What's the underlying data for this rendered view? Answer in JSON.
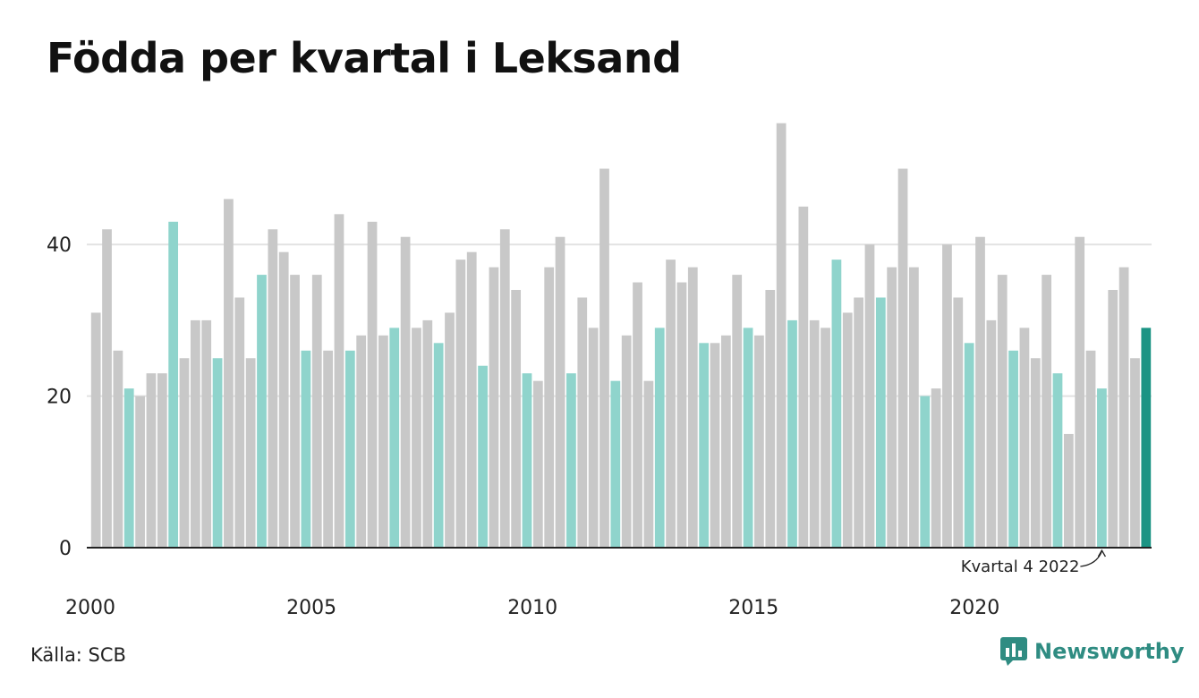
{
  "title": "Födda per kvartal i Leksand",
  "source": "Källa: SCB",
  "brand": {
    "name": "Newsworthy",
    "icon": "newsworthy-logo-icon"
  },
  "colors": {
    "other_quarter": "#c8c8c8",
    "q4_highlight": "#8fd4cc",
    "latest": "#1b9484",
    "gridline": "#e2e2e2",
    "axis": "#222222",
    "brand": "#2f8c82"
  },
  "chart_data": {
    "type": "bar",
    "title": "Födda per kvartal i Leksand",
    "xlabel": "",
    "ylabel": "",
    "ylim": [
      0,
      57
    ],
    "y_ticks": [
      0,
      20,
      40
    ],
    "x_tick_labels": [
      "2000",
      "2005",
      "2010",
      "2015",
      "2020"
    ],
    "grid": true,
    "highlight": "fourth quarter of each year",
    "annotation": {
      "text": "Kvartal 4 2022",
      "target_year": 2022,
      "target_quarter": 4
    },
    "start_year": 2000,
    "values": [
      31,
      42,
      26,
      21,
      20,
      23,
      23,
      43,
      25,
      30,
      30,
      25,
      46,
      33,
      25,
      36,
      42,
      39,
      36,
      26,
      36,
      26,
      44,
      26,
      28,
      43,
      28,
      29,
      41,
      29,
      30,
      27,
      31,
      38,
      39,
      24,
      37,
      42,
      34,
      23,
      22,
      37,
      41,
      23,
      33,
      29,
      50,
      22,
      28,
      35,
      22,
      29,
      38,
      35,
      37,
      27,
      27,
      28,
      36,
      29,
      28,
      34,
      56,
      30,
      45,
      30,
      29,
      38,
      31,
      33,
      40,
      33,
      37,
      50,
      37,
      20,
      21,
      40,
      33,
      27,
      41,
      30,
      36,
      26,
      29,
      25,
      36,
      23,
      15,
      41,
      26,
      21,
      34,
      37,
      25,
      29
    ]
  }
}
